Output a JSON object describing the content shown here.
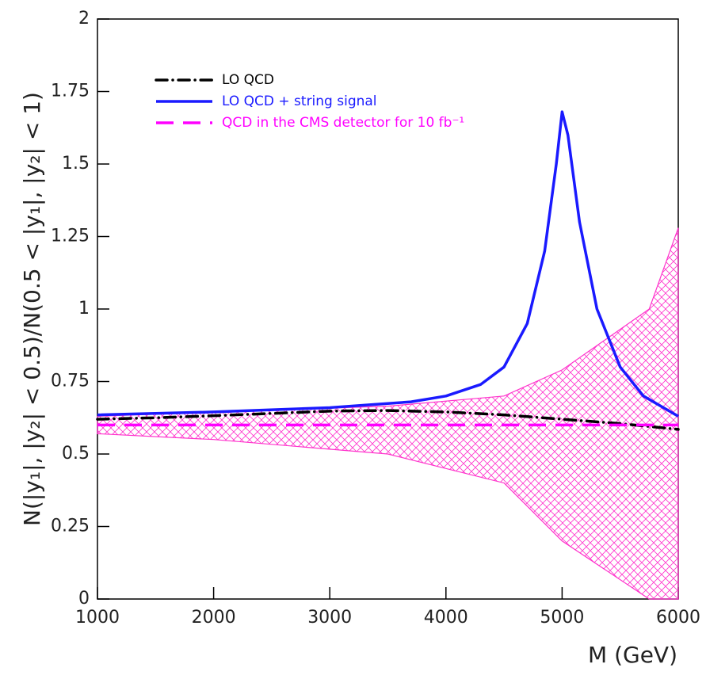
{
  "chart_data": {
    "type": "line",
    "xlabel": "M (GeV)",
    "ylabel": "N(|y₁|, |y₂| < 0.5)/N(0.5 < |y₁|, |y₂| < 1)",
    "xlim": [
      1000,
      6000
    ],
    "ylim": [
      0,
      2
    ],
    "xticks": [
      1000,
      2000,
      3000,
      4000,
      5000,
      6000
    ],
    "yticks": [
      0,
      0.25,
      0.5,
      0.75,
      1,
      1.25,
      1.5,
      1.75,
      2
    ],
    "legend": "upper left",
    "band": {
      "color": "#ff33cc",
      "x": [
        1000,
        2000,
        3500,
        4500,
        5000,
        5750,
        6000
      ],
      "upper": [
        0.63,
        0.645,
        0.665,
        0.7,
        0.79,
        1.0,
        1.28
      ],
      "lower": [
        0.57,
        0.55,
        0.5,
        0.4,
        0.2,
        0.0,
        0.0
      ]
    },
    "series": [
      {
        "name": "LO QCD",
        "color": "#000000",
        "style": "dashdot",
        "x": [
          1000,
          1500,
          2000,
          2500,
          3000,
          3500,
          4000,
          4500,
          5000,
          5500,
          6000
        ],
        "values": [
          0.62,
          0.625,
          0.632,
          0.64,
          0.648,
          0.65,
          0.645,
          0.635,
          0.62,
          0.605,
          0.585
        ]
      },
      {
        "name": "LO QCD + string signal",
        "color": "#1a1aff",
        "style": "solid",
        "x": [
          1000,
          2000,
          3000,
          3700,
          4000,
          4300,
          4500,
          4700,
          4850,
          4950,
          5000,
          5050,
          5150,
          5300,
          5500,
          5700,
          6000
        ],
        "values": [
          0.635,
          0.645,
          0.66,
          0.68,
          0.7,
          0.74,
          0.8,
          0.95,
          1.2,
          1.5,
          1.68,
          1.6,
          1.3,
          1.0,
          0.8,
          0.7,
          0.63
        ]
      },
      {
        "name": "QCD in the CMS detector for 10 fb⁻¹",
        "color": "#ff00ff",
        "style": "dashed",
        "x": [
          1000,
          6000
        ],
        "values": [
          0.6,
          0.6
        ]
      }
    ]
  }
}
